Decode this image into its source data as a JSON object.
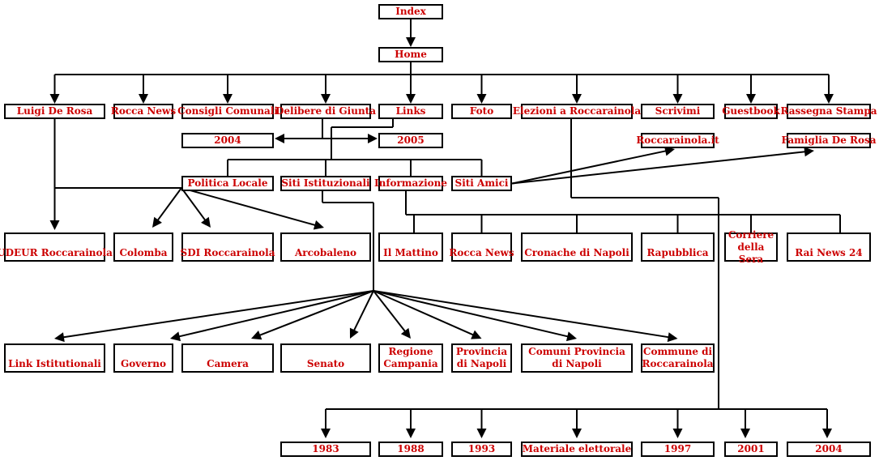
{
  "colors": {
    "text": "#cc0000",
    "line": "#000000",
    "background": "#ffffff"
  },
  "nodes": {
    "index": "Index",
    "home": "Home",
    "luigi": "Luigi De Rosa",
    "rocca_news": "Rocca News",
    "consigli": "Consigli Comunali",
    "delibere": "Delibere di Giunta",
    "links": "Links",
    "foto": "Foto",
    "elezioni": "Elezioni a Roccarainola",
    "scrivimi": "Scrivimi",
    "guestbook": "Guestbook",
    "rassegna": "Rassegna Stampa",
    "y2004_top": "2004",
    "y2005": "2005",
    "roccarainola_it": "Roccarainola.it",
    "famiglia": "Famiglia De Rosa",
    "politica": "Politica Locale",
    "siti_ist": "Siti Istituzionali",
    "informazione": "Informazione",
    "siti_amici": "Siti Amici",
    "udeur": "UDEUR Roccarainola",
    "colomba": "Colomba",
    "sdi": "SDI Roccarainola",
    "arcobaleno": "Arcobaleno",
    "mattino": "Il Mattino",
    "rocca_news2": "Rocca News",
    "cronache": "Cronache di Napoli",
    "repubblica": "Rapubblica",
    "corriere": "Corriere della Sera",
    "rai": "Rai News 24",
    "link_ist": "Link Istitutionali",
    "governo": "Governo",
    "camera": "Camera",
    "senato": "Senato",
    "regione": "Regione Campania",
    "provincia": "Provincia di Napoli",
    "comuni_prov": "Comuni Provincia di Napoli",
    "comune": "Commune di Roccarainola",
    "e1983": "1983",
    "e1988": "1988",
    "e1993": "1993",
    "materiale": "Materiale elettorale",
    "e1997": "1997",
    "e2001": "2001",
    "e2004": "2004"
  }
}
